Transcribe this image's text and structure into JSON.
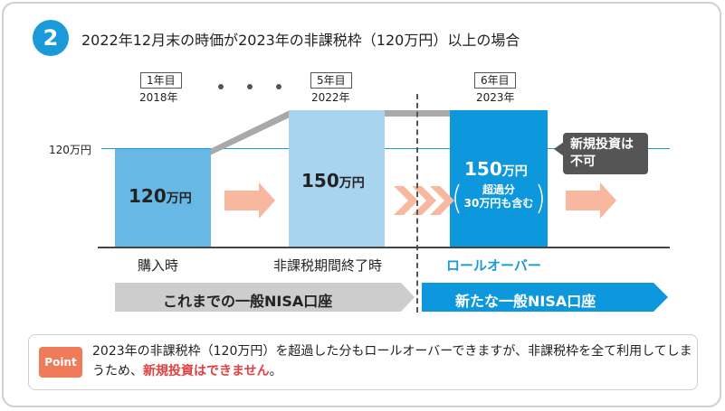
{
  "header": {
    "number": "2",
    "title": "2022年12月末の時価が2023年の非課税枠（120万円）以上の場合"
  },
  "years": [
    {
      "box": "1年目",
      "year": "2018年"
    },
    {
      "box": "5年目",
      "year": "2022年"
    },
    {
      "box": "6年目",
      "year": "2023年"
    }
  ],
  "threshold_label": "120万円",
  "bars": [
    {
      "amount": "120",
      "unit": "万円"
    },
    {
      "amount": "150",
      "unit": "万円"
    },
    {
      "amount": "150",
      "unit": "万円",
      "sub1": "超過分",
      "sub2": "30万円も含む"
    }
  ],
  "categories": [
    "購入時",
    "非課税期間終了時",
    "ロールオーバー"
  ],
  "callout": "新規投資は\n不可",
  "banners": {
    "old": "これまでの一般NISA口座",
    "new": "新たな一般NISA口座"
  },
  "point": {
    "tag": "Point",
    "text_before": "2023年の非課税枠（120万円）を超過した分もロールオーバーできますが、非課税枠を全て利用してしまうため、",
    "text_emph": "新規投資はできません",
    "text_after": "。"
  },
  "colors": {
    "accent": "#1a9ad6",
    "bar_light": "#68b8e6",
    "bar_lighter": "#a9d4ef",
    "bar_strong": "#0d98dd",
    "arrow": "#f8b8a0",
    "banner_gray": "#cdcdcd",
    "point_tag": "#ef7b5b",
    "callout": "#555555"
  }
}
